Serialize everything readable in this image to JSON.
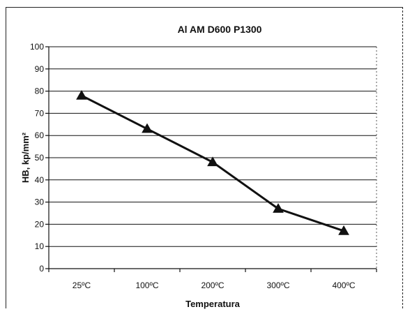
{
  "chart_data": {
    "type": "line",
    "title": "Al AM D600 P1300",
    "xlabel": "Temperatura",
    "ylabel": "HB, kp/mm²",
    "categories": [
      "25ºC",
      "100ºC",
      "200ºC",
      "300ºC",
      "400ºC"
    ],
    "series": [
      {
        "values": [
          78,
          63,
          48,
          27,
          17
        ]
      }
    ],
    "ylim": [
      0,
      100
    ],
    "yticks": [
      0,
      10,
      20,
      30,
      40,
      50,
      60,
      70,
      80,
      90,
      100
    ],
    "grid": true,
    "legend": "none",
    "marker": "triangle",
    "colors": {
      "line": "#111111",
      "grid": "#111111"
    }
  }
}
